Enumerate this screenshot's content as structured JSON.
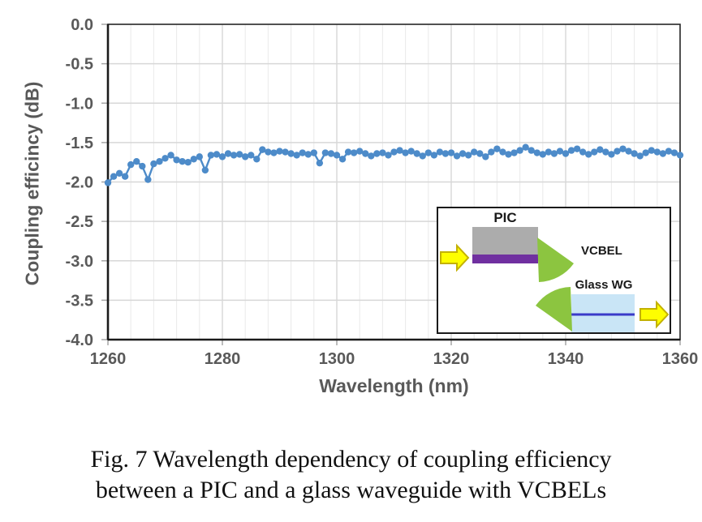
{
  "chart": {
    "y_axis_title": "Coupling efficincy (dB)",
    "x_axis_title": "Wavelength (nm)"
  },
  "inset": {
    "pic_label": "PIC",
    "vcbel_label": "VCBEL",
    "glass_wg_label": "Glass WG",
    "colors": {
      "pic_gray": "#ACACAC",
      "waveguide_purple": "#7030A0",
      "mirror_green": "#8CC540",
      "arrow_yellow": "#FEFE00",
      "arrow_yellow_border": "#C3B100",
      "glass_light_blue": "#C9E5F6",
      "core_blue": "#3A3AC8"
    }
  },
  "caption": {
    "line1": "Fig. 7 Wavelength dependency of coupling efficiency",
    "line2": "between a PIC and a glass waveguide with VCBELs"
  },
  "chart_data": {
    "type": "line",
    "title": "",
    "xlabel": "Wavelength (nm)",
    "ylabel": "Coupling efficincy (dB)",
    "xlim": [
      1260,
      1360
    ],
    "ylim": [
      -4.0,
      0.0
    ],
    "grid": true,
    "x_minor_step": 4,
    "x_ticks": [
      1260,
      1280,
      1300,
      1320,
      1340,
      1360
    ],
    "x_tick_labels": [
      "1260",
      "1280",
      "1300",
      "1320",
      "1340",
      "1360"
    ],
    "y_ticks": [
      0.0,
      -0.5,
      -1.0,
      -1.5,
      -2.0,
      -2.5,
      -3.0,
      -3.5,
      -4.0
    ],
    "y_tick_labels": [
      "0.0",
      "-0.5",
      "-1.0",
      "-1.5",
      "-2.0",
      "-2.5",
      "-3.0",
      "-3.5",
      "-4.0"
    ],
    "marker_color": "#4D8BC9",
    "series": [
      {
        "name": "coupling efficiency",
        "x": [
          1260,
          1261,
          1262,
          1263,
          1264,
          1265,
          1266,
          1267,
          1268,
          1269,
          1270,
          1271,
          1272,
          1273,
          1274,
          1275,
          1276,
          1277,
          1278,
          1279,
          1280,
          1281,
          1282,
          1283,
          1284,
          1285,
          1286,
          1287,
          1288,
          1289,
          1290,
          1291,
          1292,
          1293,
          1294,
          1295,
          1296,
          1297,
          1298,
          1299,
          1300,
          1301,
          1302,
          1303,
          1304,
          1305,
          1306,
          1307,
          1308,
          1309,
          1310,
          1311,
          1312,
          1313,
          1314,
          1315,
          1316,
          1317,
          1318,
          1319,
          1320,
          1321,
          1322,
          1323,
          1324,
          1325,
          1326,
          1327,
          1328,
          1329,
          1330,
          1331,
          1332,
          1333,
          1334,
          1335,
          1336,
          1337,
          1338,
          1339,
          1340,
          1341,
          1342,
          1343,
          1344,
          1345,
          1346,
          1347,
          1348,
          1349,
          1350,
          1351,
          1352,
          1353,
          1354,
          1355,
          1356,
          1357,
          1358,
          1359,
          1360
        ],
        "y": [
          -2.01,
          -1.93,
          -1.89,
          -1.93,
          -1.78,
          -1.74,
          -1.8,
          -1.97,
          -1.77,
          -1.74,
          -1.7,
          -1.66,
          -1.72,
          -1.74,
          -1.75,
          -1.71,
          -1.68,
          -1.85,
          -1.66,
          -1.65,
          -1.68,
          -1.64,
          -1.66,
          -1.65,
          -1.68,
          -1.66,
          -1.71,
          -1.59,
          -1.62,
          -1.63,
          -1.61,
          -1.62,
          -1.64,
          -1.66,
          -1.63,
          -1.65,
          -1.63,
          -1.76,
          -1.63,
          -1.64,
          -1.66,
          -1.71,
          -1.62,
          -1.63,
          -1.61,
          -1.64,
          -1.67,
          -1.64,
          -1.63,
          -1.66,
          -1.62,
          -1.6,
          -1.63,
          -1.61,
          -1.64,
          -1.67,
          -1.63,
          -1.66,
          -1.62,
          -1.64,
          -1.63,
          -1.67,
          -1.64,
          -1.66,
          -1.62,
          -1.64,
          -1.68,
          -1.62,
          -1.58,
          -1.62,
          -1.65,
          -1.63,
          -1.6,
          -1.56,
          -1.6,
          -1.63,
          -1.65,
          -1.62,
          -1.64,
          -1.61,
          -1.64,
          -1.6,
          -1.58,
          -1.62,
          -1.65,
          -1.62,
          -1.59,
          -1.62,
          -1.65,
          -1.61,
          -1.58,
          -1.61,
          -1.64,
          -1.67,
          -1.63,
          -1.6,
          -1.62,
          -1.64,
          -1.61,
          -1.63,
          -1.66
        ]
      }
    ]
  }
}
